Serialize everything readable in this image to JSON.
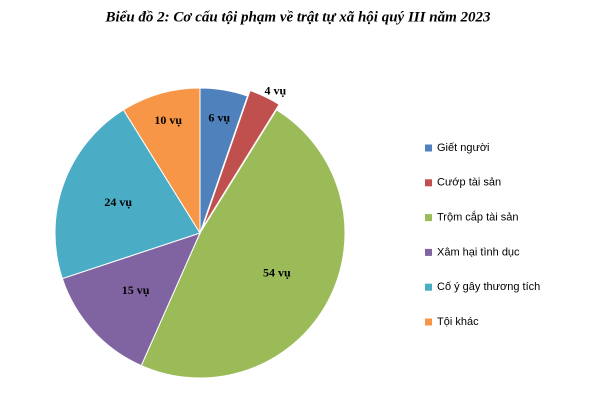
{
  "chart_data": {
    "type": "pie",
    "title": "Biểu đồ 2: Cơ cấu tội phạm về trật tự xã hội quý III năm 2023",
    "categories": [
      "Giết người",
      "Cướp tài sản",
      "Trộm cắp tài sản",
      "Xâm hại tình dục",
      "Cố ý gây thương tích",
      "Tội khác"
    ],
    "values": [
      6,
      4,
      54,
      15,
      24,
      10
    ],
    "value_labels": [
      "6 vụ",
      "4 vụ",
      "54 vụ",
      "15 vụ",
      "24 vụ",
      "10 vụ"
    ],
    "colors": [
      "#4f81bd",
      "#c0504d",
      "#9bbb59",
      "#8064a2",
      "#4bacc6",
      "#f79646"
    ],
    "legend": "right"
  }
}
